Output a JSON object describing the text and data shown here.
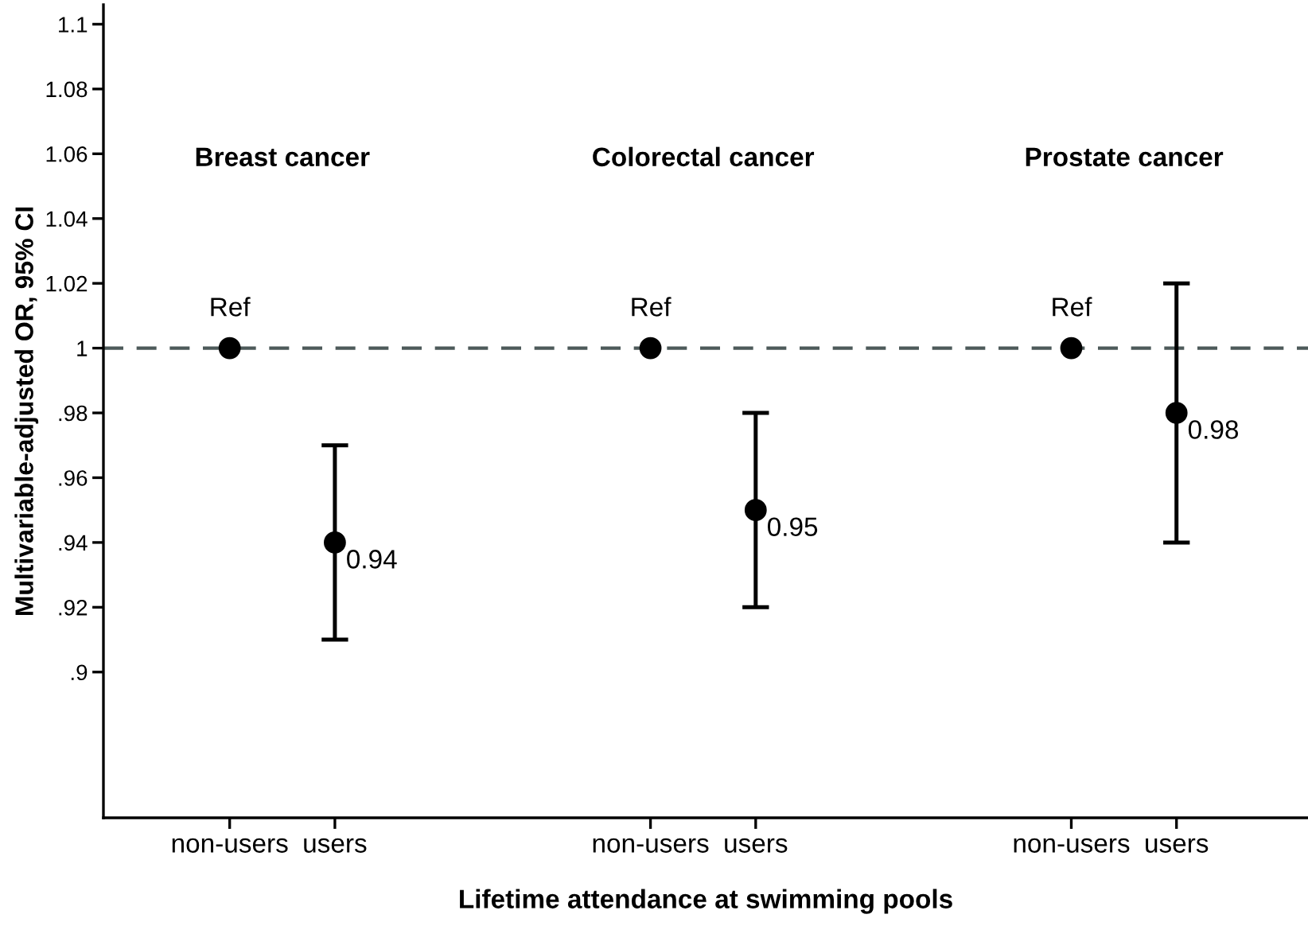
{
  "chart_data": {
    "type": "scatter",
    "xlabel": "Lifetime attendance at swimming pools",
    "ylabel": "Multivariable-adjusted OR, 95% CI",
    "categories": [
      "non-users",
      "users",
      null,
      null,
      "non-users",
      "users",
      null,
      null,
      "non-users",
      "users"
    ],
    "series": [
      {
        "color": "#000000",
        "values": [
          1,
          0.94,
          null,
          null,
          1,
          0.95,
          null,
          null,
          1,
          0.98
        ],
        "errors": [
          null,
          [
            0.91,
            0.97
          ],
          null,
          null,
          null,
          [
            0.92,
            0.98
          ],
          null,
          null,
          null,
          [
            0.94,
            1.02
          ]
        ],
        "value_labels": [
          "Ref",
          "0.94",
          null,
          null,
          "Ref",
          "0.95",
          null,
          null,
          "Ref",
          "0.98"
        ]
      }
    ],
    "marker": "circle",
    "annotations": [
      "Breast cancer",
      "Colorectal cancer",
      "Prostate cancer"
    ],
    "ref_lines": [
      {
        "axis": "y",
        "value": 1,
        "color": "#4d5a5a",
        "line_style": "dashed"
      }
    ],
    "ylim": [
      0.855,
      1.106
    ],
    "yticks": [
      {
        "value": 0.9,
        "label": ".9"
      },
      {
        "value": 0.92,
        "label": ".92"
      },
      {
        "value": 0.94,
        "label": ".94"
      },
      {
        "value": 0.96,
        "label": ".96"
      },
      {
        "value": 0.98,
        "label": ".98"
      },
      1,
      {
        "value": 1.02,
        "label": "1.02"
      },
      {
        "value": 1.04,
        "label": "1.04"
      },
      {
        "value": 1.06,
        "label": "1.06"
      },
      {
        "value": 1.08,
        "label": "1.08"
      },
      {
        "value": 1.1,
        "label": "1.1"
      }
    ],
    "grid": false
  }
}
